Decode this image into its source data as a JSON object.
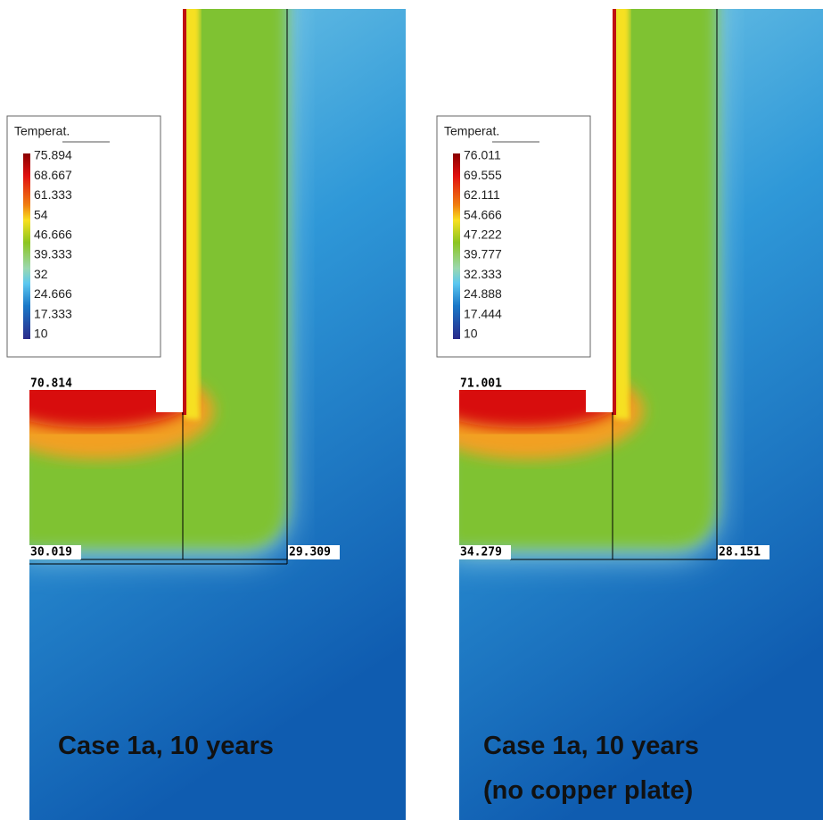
{
  "panels": [
    {
      "legend": {
        "title": "Temperat.",
        "labels": [
          "75.894",
          "68.667",
          "61.333",
          "54",
          "46.666",
          "39.333",
          "32",
          "24.666",
          "17.333",
          "10"
        ]
      },
      "probes": [
        "70.814",
        "30.019",
        "29.309"
      ],
      "caption": [
        "Case 1a, 10 years"
      ]
    },
    {
      "legend": {
        "title": "Temperat.",
        "labels": [
          "76.011",
          "69.555",
          "62.111",
          "54.666",
          "47.222",
          "39.777",
          "32.333",
          "24.888",
          "17.444",
          "10"
        ]
      },
      "probes": [
        "71.001",
        "34.279",
        "28.151"
      ],
      "caption": [
        "Case 1a, 10 years",
        "(no copper plate)"
      ]
    }
  ]
}
